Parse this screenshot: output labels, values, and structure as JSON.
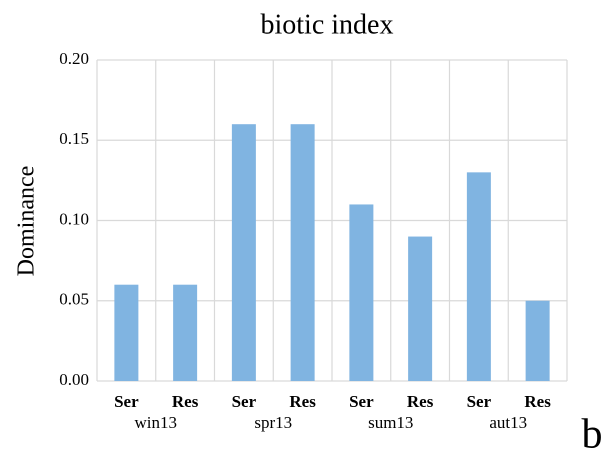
{
  "chart_data": {
    "type": "bar",
    "title": "biotic index",
    "y_label": "Dominance",
    "categories": [
      "Ser",
      "Res",
      "Ser",
      "Res",
      "Ser",
      "Res",
      "Ser",
      "Res"
    ],
    "groups": [
      "win13",
      "spr13",
      "sum13",
      "aut13"
    ],
    "values": [
      0.06,
      0.06,
      0.16,
      0.16,
      0.11,
      0.09,
      0.13,
      0.05
    ],
    "color": "#80b4e1",
    "ylim": [
      0,
      0.2
    ],
    "yticks": [
      {
        "value": 0,
        "label": "0.00"
      },
      {
        "value": 0.05,
        "label": "0.05"
      },
      {
        "value": 0.1,
        "label": "0.10"
      },
      {
        "value": 0.15,
        "label": "0.15"
      },
      {
        "value": 0.2,
        "label": "0.20"
      }
    ],
    "grid": true,
    "annotation": "b"
  }
}
